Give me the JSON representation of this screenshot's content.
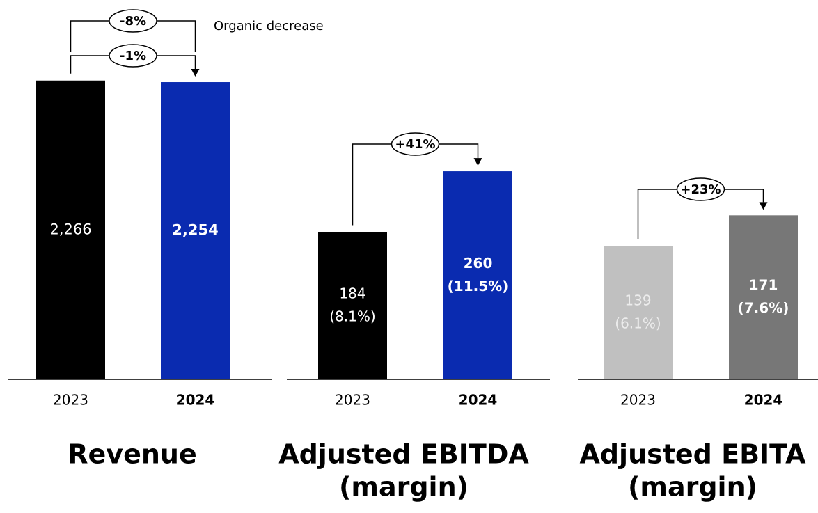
{
  "chart_data": [
    {
      "type": "bar",
      "title": [
        "Revenue"
      ],
      "categories": [
        "2023",
        "2024"
      ],
      "values": [
        2266,
        2254
      ],
      "value_labels": [
        "2,266",
        "2,254"
      ],
      "colors": [
        "#000000",
        "#0a2bb0"
      ],
      "ylim": [
        0,
        2270
      ],
      "changes": [
        "-8%",
        "-1%"
      ],
      "change_note": "Organic decrease"
    },
    {
      "type": "bar",
      "title": [
        "Adjusted EBITDA",
        "(margin)"
      ],
      "categories": [
        "2023",
        "2024"
      ],
      "values": [
        184,
        260
      ],
      "margin_labels": [
        "(8.1%)",
        "(11.5%)"
      ],
      "colors": [
        "#000000",
        "#0a2bb0"
      ],
      "ylim": [
        0,
        374
      ],
      "changes": [
        "+41%"
      ]
    },
    {
      "type": "bar",
      "title": [
        "Adjusted EBITA",
        "(margin)"
      ],
      "categories": [
        "2023",
        "2024"
      ],
      "values": [
        139,
        171
      ],
      "margin_labels": [
        "(6.1%)",
        "(7.6%)"
      ],
      "colors": [
        "#c0c0c0",
        "#777777"
      ],
      "ylim": [
        0,
        312
      ],
      "changes": [
        "+23%"
      ]
    }
  ]
}
